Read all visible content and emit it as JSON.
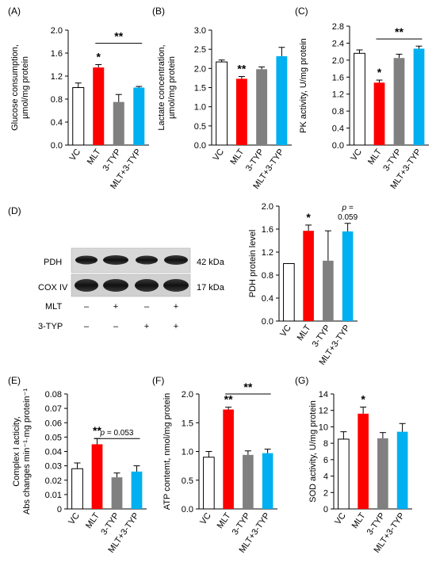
{
  "colors": {
    "VC": "#ffffff",
    "MLT": "#ff0000",
    "3-TYP": "#808080",
    "MLT+3-TYP": "#00b0f0",
    "axis": "#000000"
  },
  "chart_data": [
    {
      "panel": "(A)",
      "type": "bar",
      "ylabel_lines": [
        "Glucose consumption,",
        "µmol/mg protein"
      ],
      "categories": [
        "VC",
        "MLT",
        "3-TYP",
        "MLT+3-TYP"
      ],
      "values": [
        1.0,
        1.35,
        0.75,
        1.0
      ],
      "errors": [
        0.08,
        0.05,
        0.13,
        0.02
      ],
      "ylim": [
        0,
        2.0
      ],
      "yticks": [
        "0.0",
        "0.4",
        "0.8",
        "1.2",
        "1.6",
        "2.0"
      ],
      "annotations": [
        {
          "text": "*",
          "bar": 1
        }
      ],
      "brackets": [
        {
          "text": "**",
          "from": 1,
          "to": 3,
          "y": 1.77
        }
      ]
    },
    {
      "panel": "(B)",
      "type": "bar",
      "ylabel_lines": [
        "Lactate concentration,",
        "µmol/mg protein"
      ],
      "categories": [
        "VC",
        "MLT",
        "3-TYP",
        "MLT+3-TYP"
      ],
      "values": [
        2.17,
        1.73,
        1.98,
        2.32
      ],
      "errors": [
        0.05,
        0.06,
        0.06,
        0.23
      ],
      "ylim": [
        0,
        3.0
      ],
      "yticks": [
        "0.0",
        "0.5",
        "1.0",
        "1.5",
        "2.0",
        "2.5",
        "3.0"
      ],
      "annotations": [
        {
          "text": "**",
          "bar": 1
        }
      ],
      "brackets": []
    },
    {
      "panel": "(C)",
      "type": "bar",
      "ylabel_lines": [
        "PK activity, U/mg protein"
      ],
      "categories": [
        "VC",
        "MLT",
        "3-TYP",
        "MLT+3-TYP"
      ],
      "values": [
        2.16,
        1.47,
        2.05,
        2.27
      ],
      "errors": [
        0.08,
        0.06,
        0.09,
        0.06
      ],
      "ylim": [
        0,
        2.8
      ],
      "yticks": [
        "0.0",
        "0.4",
        "0.8",
        "1.2",
        "1.6",
        "2.0",
        "2.4",
        "2.8"
      ],
      "annotations": [
        {
          "text": "*",
          "bar": 1
        }
      ],
      "brackets": [
        {
          "text": "**",
          "from": 1,
          "to": 3,
          "y": 2.5
        }
      ]
    },
    {
      "panel": "(D)",
      "type": "bar",
      "ylabel_lines": [
        "PDH protein level"
      ],
      "categories": [
        "VC",
        "MLT",
        "3-TYP",
        "MLT+3-TYP"
      ],
      "values": [
        1.0,
        1.57,
        1.05,
        1.56
      ],
      "errors": [
        0.0,
        0.1,
        0.52,
        0.14
      ],
      "ylim": [
        0,
        2.0
      ],
      "yticks": [
        "0.0",
        "0.4",
        "0.8",
        "1.2",
        "1.6",
        "2.0"
      ],
      "annotations": [
        {
          "text": "*",
          "bar": 1
        },
        {
          "text": "p =",
          "bar": 3,
          "italic": true,
          "line": 0
        },
        {
          "text": "0.059",
          "bar": 3,
          "line": 1
        }
      ],
      "brackets": []
    },
    {
      "panel": "(E)",
      "type": "bar",
      "ylabel_lines": [
        "Complex I acticity,",
        "Abs changes min⁻¹·mg protein⁻¹"
      ],
      "categories": [
        "VC",
        "MLT",
        "3-TYP",
        "MLT+3-TYP"
      ],
      "values": [
        0.028,
        0.045,
        0.022,
        0.026
      ],
      "errors": [
        0.004,
        0.004,
        0.003,
        0.004
      ],
      "ylim": [
        0,
        0.08
      ],
      "yticks": [
        "0",
        "0.01",
        "0.02",
        "0.03",
        "0.04",
        "0.05",
        "0.06",
        "0.07",
        "0.08"
      ],
      "annotations": [
        {
          "text": "**",
          "bar": 1
        }
      ],
      "brackets": [
        {
          "text": "p = 0.053",
          "from": 1,
          "to": 3,
          "y": 0.049,
          "italic_p": true
        }
      ]
    },
    {
      "panel": "(F)",
      "type": "bar",
      "ylabel_lines": [
        "ATP contemt, nmol/mg protein"
      ],
      "categories": [
        "VC",
        "MLT",
        "3-TYP",
        "MLT+3-TYP"
      ],
      "values": [
        0.9,
        1.73,
        0.94,
        0.97
      ],
      "errors": [
        0.1,
        0.04,
        0.07,
        0.07
      ],
      "ylim": [
        0,
        2.0
      ],
      "yticks": [
        "0.0",
        "0.5",
        "1.0",
        "1.5",
        "2.0"
      ],
      "annotations": [
        {
          "text": "**",
          "bar": 1
        }
      ],
      "brackets": [
        {
          "text": "**",
          "from": 1,
          "to": 3,
          "y": 2.0
        }
      ]
    },
    {
      "panel": "(G)",
      "type": "bar",
      "ylabel_lines": [
        "SOD activity, U/mg protein"
      ],
      "categories": [
        "VC",
        "MLT",
        "3-TYP",
        "MLT+3-TYP"
      ],
      "values": [
        8.5,
        11.6,
        8.6,
        9.4
      ],
      "errors": [
        0.9,
        0.8,
        0.7,
        1.0
      ],
      "ylim": [
        0,
        14
      ],
      "yticks": [
        "0",
        "2",
        "4",
        "6",
        "8",
        "10",
        "12",
        "14"
      ],
      "annotations": [
        {
          "text": "*",
          "bar": 1
        }
      ],
      "brackets": []
    }
  ],
  "blot": {
    "proteins": [
      {
        "name": "PDH",
        "size": "42 kDa"
      },
      {
        "name": "COX IV",
        "size": "17 kDa"
      }
    ],
    "conditions": [
      {
        "name": "MLT",
        "signs": [
          "–",
          "+",
          "–",
          "+"
        ]
      },
      {
        "name": "3-TYP",
        "signs": [
          "–",
          "–",
          "+",
          "+"
        ]
      }
    ]
  }
}
